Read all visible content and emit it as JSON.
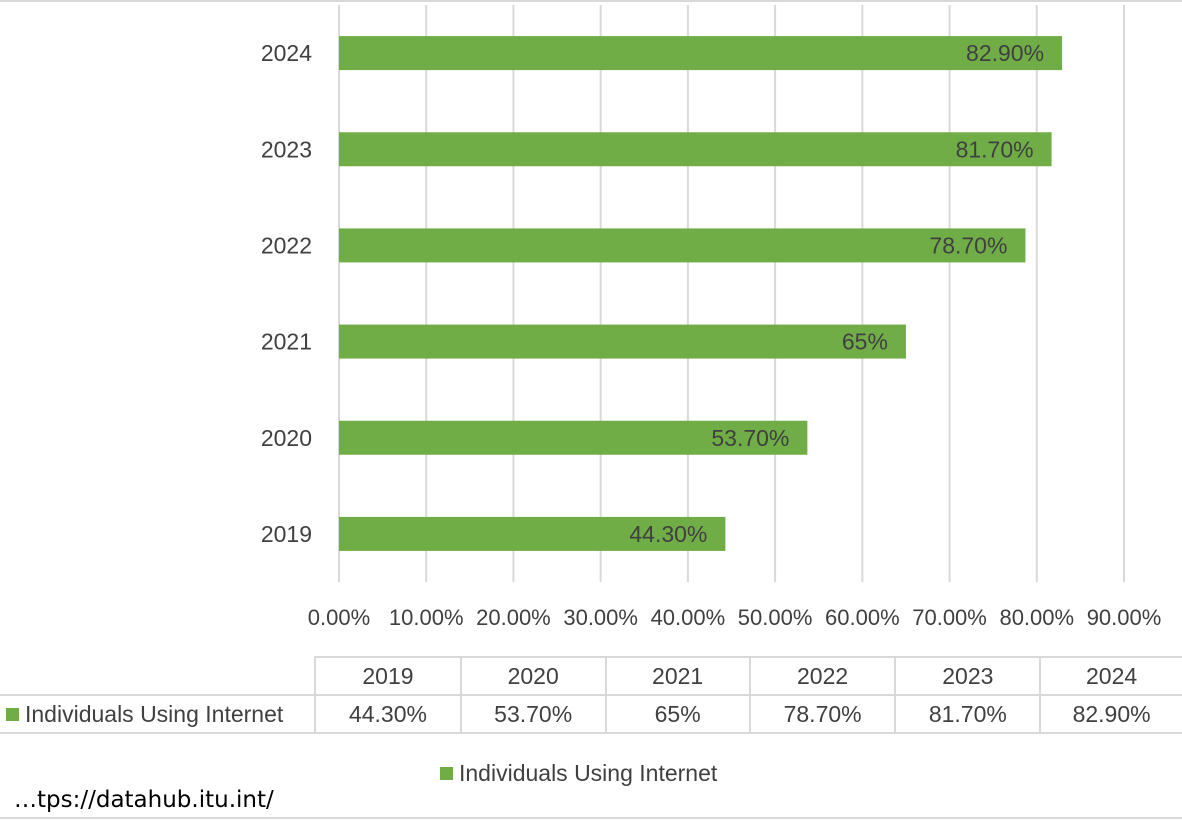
{
  "chart_data": {
    "type": "bar",
    "orientation": "horizontal",
    "categories": [
      "2019",
      "2020",
      "2021",
      "2022",
      "2023",
      "2024"
    ],
    "series": [
      {
        "name": "Individuals Using Internet",
        "values": [
          44.3,
          53.7,
          65,
          78.7,
          81.7,
          82.9
        ],
        "labels": [
          "44.30%",
          "53.70%",
          "65%",
          "78.70%",
          "81.70%",
          "82.90%"
        ],
        "color": "#70ad47"
      }
    ],
    "xlim": [
      0,
      90
    ],
    "x_ticks": [
      0,
      10,
      20,
      30,
      40,
      50,
      60,
      70,
      80,
      90
    ],
    "x_tick_labels": [
      "0.00%",
      "10.00%",
      "20.00%",
      "30.00%",
      "40.00%",
      "50.00%",
      "60.00%",
      "70.00%",
      "80.00%",
      "90.00%"
    ],
    "grid": true,
    "legend_position": "bottom",
    "data_table": true
  },
  "source_text": "…tps://datahub.itu.int/"
}
